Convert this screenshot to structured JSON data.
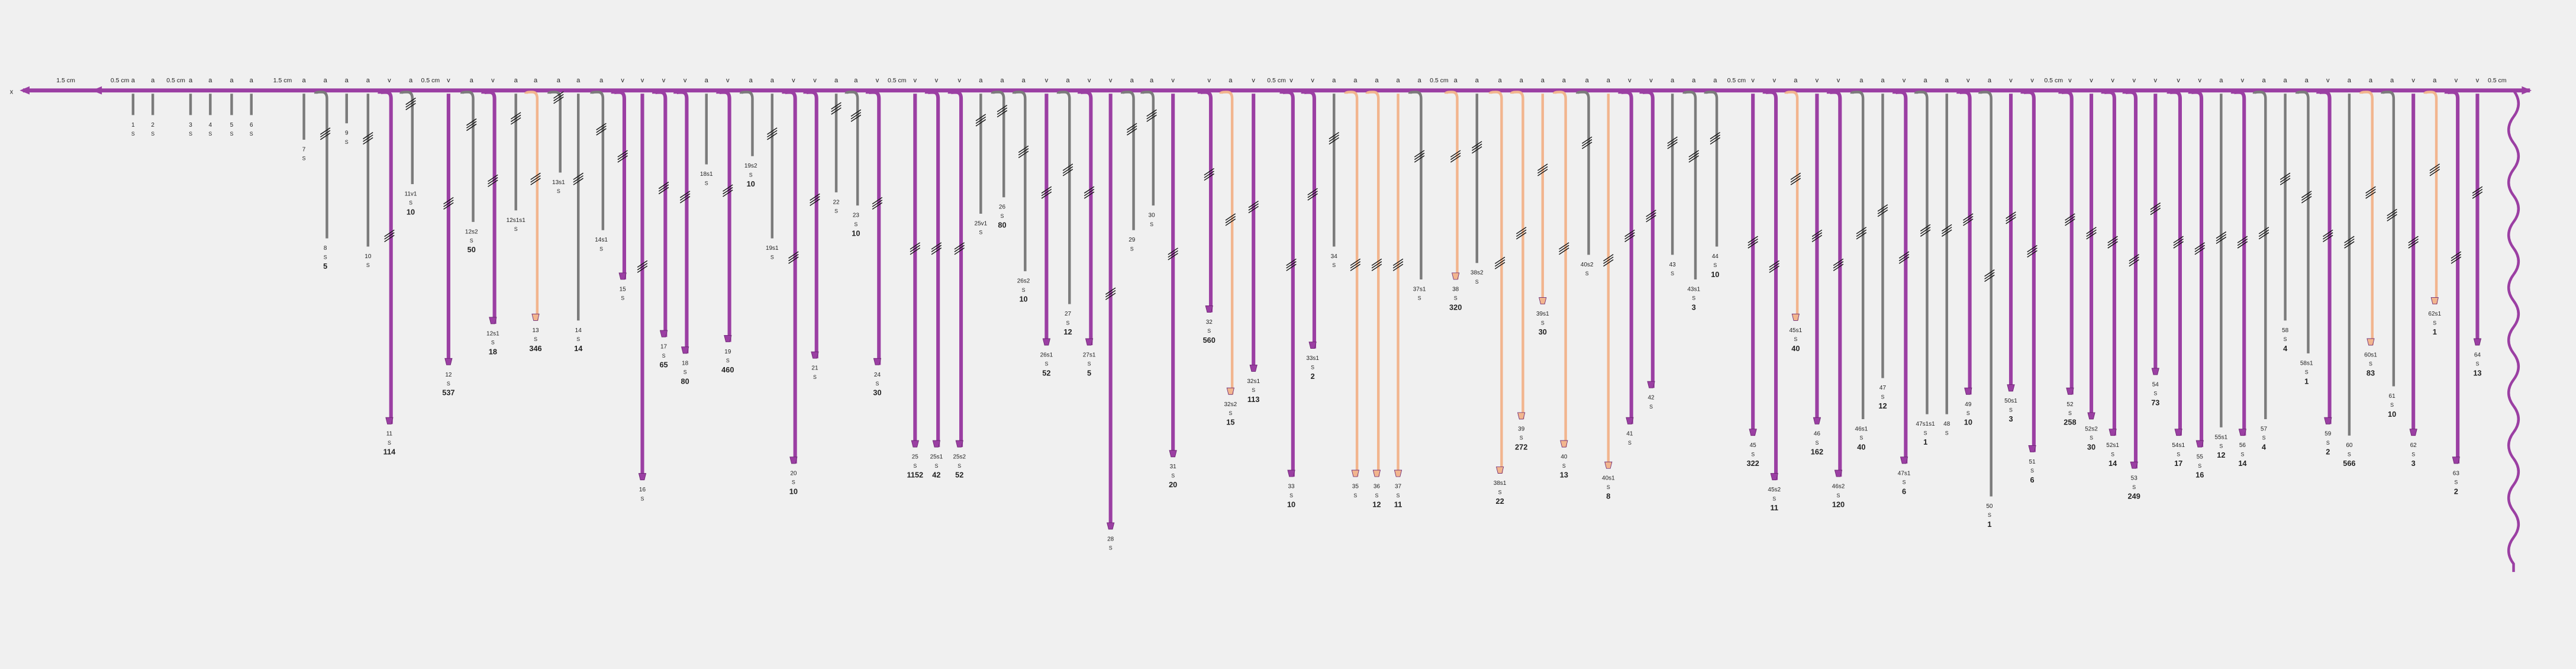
{
  "start_label": "x",
  "s_label": "S",
  "distances": [
    "1.5 cm",
    "0.5 cm",
    "0.5 cm",
    "1.5 cm",
    "0.5 cm",
    "0.5 cm",
    "0.5 cm",
    "0.5 cm",
    "0.5 cm",
    "0.5 cm",
    "0.5 cm"
  ],
  "colors": {
    "gray": "#7b7b7b",
    "purple": "#9b3fa3",
    "orange": "#f2b58e"
  },
  "branches": [
    {
      "id": "1",
      "kind": "gray",
      "tag": "a"
    },
    {
      "id": "2",
      "kind": "gray",
      "tag": "a"
    },
    {
      "id": "3",
      "kind": "gray",
      "tag": "a"
    },
    {
      "id": "4",
      "kind": "gray",
      "tag": "a"
    },
    {
      "id": "5",
      "kind": "gray",
      "tag": "a"
    },
    {
      "id": "6",
      "kind": "gray",
      "tag": "a"
    },
    {
      "id": "7",
      "kind": "gray",
      "tag": "a"
    },
    {
      "id": "8",
      "kind": "gray",
      "tag": "a",
      "count": "5"
    },
    {
      "id": "9",
      "kind": "gray",
      "tag": "a"
    },
    {
      "id": "10",
      "kind": "gray",
      "tag": "a"
    },
    {
      "id": "11",
      "kind": "purple",
      "tag": "v",
      "count": "114"
    },
    {
      "id": "11v1",
      "kind": "gray",
      "tag": "a",
      "count": "10"
    },
    {
      "id": "12",
      "kind": "purple",
      "tag": "v",
      "count": "537"
    },
    {
      "id": "12s2",
      "kind": "gray",
      "tag": "a",
      "count": "50"
    },
    {
      "id": "12s1",
      "kind": "purple",
      "tag": "v",
      "count": "18"
    },
    {
      "id": "12s1s1",
      "kind": "gray",
      "tag": "a"
    },
    {
      "id": "13",
      "kind": "orange",
      "tag": "a",
      "count": "346"
    },
    {
      "id": "13s1",
      "kind": "gray",
      "tag": "a"
    },
    {
      "id": "14",
      "kind": "gray",
      "tag": "a",
      "count": "14"
    },
    {
      "id": "14s1",
      "kind": "gray",
      "tag": "a"
    },
    {
      "id": "15",
      "kind": "purple",
      "tag": "v"
    },
    {
      "id": "16",
      "kind": "purple",
      "tag": "v"
    },
    {
      "id": "17",
      "kind": "purple",
      "tag": "v",
      "count": "65"
    },
    {
      "id": "18",
      "kind": "purple",
      "tag": "v",
      "count": "80"
    },
    {
      "id": "18s1",
      "kind": "gray",
      "tag": "a"
    },
    {
      "id": "19",
      "kind": "purple",
      "tag": "v",
      "count": "460"
    },
    {
      "id": "19s2",
      "kind": "gray",
      "tag": "a",
      "count": "10"
    },
    {
      "id": "19s1",
      "kind": "gray",
      "tag": "a"
    },
    {
      "id": "20",
      "kind": "purple",
      "tag": "v",
      "count": "10"
    },
    {
      "id": "21",
      "kind": "purple",
      "tag": "v"
    },
    {
      "id": "22",
      "kind": "gray",
      "tag": "a"
    },
    {
      "id": "23",
      "kind": "gray",
      "tag": "a",
      "count": "10"
    },
    {
      "id": "24",
      "kind": "purple",
      "tag": "v",
      "count": "30"
    },
    {
      "id": "25",
      "kind": "purple",
      "tag": "v",
      "count": "1152"
    },
    {
      "id": "25s1",
      "kind": "purple",
      "tag": "v",
      "count": "42"
    },
    {
      "id": "25s2",
      "kind": "purple",
      "tag": "v",
      "count": "52"
    },
    {
      "id": "25v1",
      "kind": "gray",
      "tag": "a"
    },
    {
      "id": "26",
      "kind": "gray",
      "tag": "a",
      "count": "80"
    },
    {
      "id": "26s2",
      "kind": "gray",
      "tag": "a",
      "count": "10"
    },
    {
      "id": "26s1",
      "kind": "purple",
      "tag": "v",
      "count": "52"
    },
    {
      "id": "27",
      "kind": "gray",
      "tag": "a",
      "count": "12"
    },
    {
      "id": "27s1",
      "kind": "purple",
      "tag": "v",
      "count": "5"
    },
    {
      "id": "28",
      "kind": "purple",
      "tag": "v"
    },
    {
      "id": "29",
      "kind": "gray",
      "tag": "a"
    },
    {
      "id": "30",
      "kind": "gray",
      "tag": "a"
    },
    {
      "id": "31",
      "kind": "purple",
      "tag": "v",
      "count": "20"
    },
    {
      "id": "32",
      "kind": "purple",
      "tag": "v",
      "count": "560"
    },
    {
      "id": "32s2",
      "kind": "orange",
      "tag": "a",
      "count": "15"
    },
    {
      "id": "32s1",
      "kind": "purple",
      "tag": "v",
      "count": "113"
    },
    {
      "id": "33",
      "kind": "purple",
      "tag": "v",
      "count": "10"
    },
    {
      "id": "33s1",
      "kind": "purple",
      "tag": "v",
      "count": "2"
    },
    {
      "id": "34",
      "kind": "gray",
      "tag": "a"
    },
    {
      "id": "35",
      "kind": "orange",
      "tag": "a"
    },
    {
      "id": "36",
      "kind": "orange",
      "tag": "a",
      "count": "12"
    },
    {
      "id": "37",
      "kind": "orange",
      "tag": "a",
      "count": "11"
    },
    {
      "id": "37s1",
      "kind": "gray",
      "tag": "a"
    },
    {
      "id": "38",
      "kind": "orange",
      "tag": "a",
      "count": "320"
    },
    {
      "id": "38s2",
      "kind": "gray",
      "tag": "a"
    },
    {
      "id": "38s1",
      "kind": "orange",
      "tag": "a",
      "count": "22"
    },
    {
      "id": "39",
      "kind": "orange",
      "tag": "a",
      "count": "272"
    },
    {
      "id": "39s1",
      "kind": "orange",
      "tag": "a",
      "count": "30"
    },
    {
      "id": "40",
      "kind": "orange",
      "tag": "a",
      "count": "13"
    },
    {
      "id": "40s2",
      "kind": "gray",
      "tag": "a"
    },
    {
      "id": "40s1",
      "kind": "orange",
      "tag": "a",
      "count": "8"
    },
    {
      "id": "41",
      "kind": "purple",
      "tag": "v"
    },
    {
      "id": "42",
      "kind": "purple",
      "tag": "v"
    },
    {
      "id": "43",
      "kind": "gray",
      "tag": "a"
    },
    {
      "id": "43s1",
      "kind": "gray",
      "tag": "a",
      "count": "3"
    },
    {
      "id": "44",
      "kind": "gray",
      "tag": "a",
      "count": "10"
    },
    {
      "id": "45",
      "kind": "purple",
      "tag": "v",
      "count": "322"
    },
    {
      "id": "45s2",
      "kind": "purple",
      "tag": "v",
      "count": "11"
    },
    {
      "id": "45s1",
      "kind": "orange",
      "tag": "a",
      "count": "40"
    },
    {
      "id": "46",
      "kind": "purple",
      "tag": "v",
      "count": "162"
    },
    {
      "id": "46s2",
      "kind": "purple",
      "tag": "v",
      "count": "120"
    },
    {
      "id": "46s1",
      "kind": "gray",
      "tag": "a",
      "count": "40"
    },
    {
      "id": "47",
      "kind": "gray",
      "tag": "a",
      "count": "12"
    },
    {
      "id": "47s1",
      "kind": "purple",
      "tag": "v",
      "count": "6"
    },
    {
      "id": "47s1s1",
      "kind": "gray",
      "tag": "a",
      "count": "1"
    },
    {
      "id": "48",
      "kind": "gray",
      "tag": "a"
    },
    {
      "id": "49",
      "kind": "purple",
      "tag": "v",
      "count": "10"
    },
    {
      "id": "50",
      "kind": "gray",
      "tag": "a",
      "count": "1"
    },
    {
      "id": "50s1",
      "kind": "purple",
      "tag": "v",
      "count": "3"
    },
    {
      "id": "51",
      "kind": "purple",
      "tag": "v",
      "count": "6"
    },
    {
      "id": "52",
      "kind": "purple",
      "tag": "v",
      "count": "258"
    },
    {
      "id": "52s2",
      "kind": "purple",
      "tag": "v",
      "count": "30"
    },
    {
      "id": "52s1",
      "kind": "purple",
      "tag": "v",
      "count": "14"
    },
    {
      "id": "53",
      "kind": "purple",
      "tag": "v",
      "count": "249"
    },
    {
      "id": "54",
      "kind": "purple",
      "tag": "v",
      "count": "73"
    },
    {
      "id": "54s1",
      "kind": "purple",
      "tag": "v",
      "count": "17"
    },
    {
      "id": "55",
      "kind": "purple",
      "tag": "v",
      "count": "16"
    },
    {
      "id": "55s1",
      "kind": "gray",
      "tag": "a",
      "count": "12"
    },
    {
      "id": "56",
      "kind": "purple",
      "tag": "v",
      "count": "14"
    },
    {
      "id": "57",
      "kind": "gray",
      "tag": "a",
      "count": "4"
    },
    {
      "id": "58",
      "kind": "gray",
      "tag": "a",
      "count": "4"
    },
    {
      "id": "58s1",
      "kind": "gray",
      "tag": "a",
      "count": "1"
    },
    {
      "id": "59",
      "kind": "purple",
      "tag": "v",
      "count": "2"
    },
    {
      "id": "60",
      "kind": "gray",
      "tag": "a",
      "count": "566"
    },
    {
      "id": "60s1",
      "kind": "orange",
      "tag": "a",
      "count": "83"
    },
    {
      "id": "61",
      "kind": "gray",
      "tag": "a",
      "count": "10"
    },
    {
      "id": "62",
      "kind": "purple",
      "tag": "v",
      "count": "3"
    },
    {
      "id": "62s1",
      "kind": "orange",
      "tag": "a",
      "count": "1"
    },
    {
      "id": "63",
      "kind": "purple",
      "tag": "v",
      "count": "2"
    },
    {
      "id": "64",
      "kind": "purple",
      "tag": "v",
      "count": "13"
    }
  ]
}
